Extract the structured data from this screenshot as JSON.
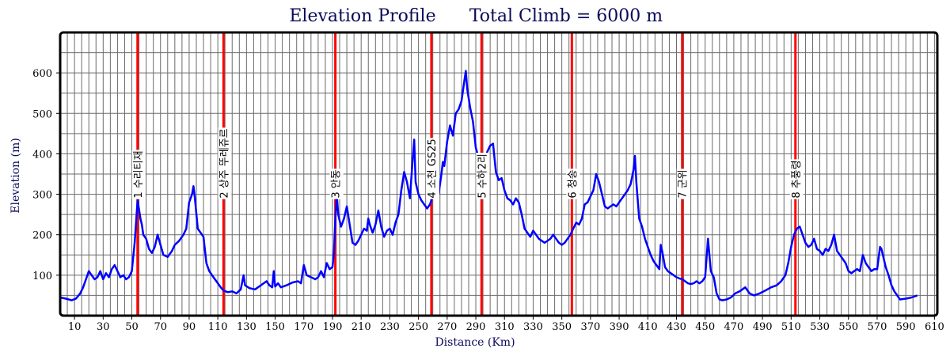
{
  "chart_data": {
    "type": "line",
    "title": "Elevation Profile",
    "subtitle": "Total Climb = 6000 m",
    "xlabel": "Distance (Km)",
    "ylabel": "Elevation (m)",
    "xlim": [
      0,
      612
    ],
    "ylim": [
      0,
      700
    ],
    "x_ticks": [
      10,
      30,
      50,
      70,
      90,
      110,
      130,
      150,
      170,
      190,
      210,
      230,
      250,
      270,
      290,
      310,
      330,
      350,
      370,
      390,
      410,
      430,
      450,
      470,
      490,
      510,
      530,
      550,
      570,
      590,
      610
    ],
    "y_ticks": [
      100,
      200,
      300,
      400,
      500,
      600
    ],
    "grid": true,
    "line_color": "#0000ff",
    "marker_color": "#ff0000",
    "markers": [
      {
        "x": 54,
        "label": "1 수리티재"
      },
      {
        "x": 114,
        "label": "2 상주 뚜레쥬르"
      },
      {
        "x": 192,
        "label": "3 안동"
      },
      {
        "x": 259,
        "label": "4 소천 GS25"
      },
      {
        "x": 294,
        "label": "5 수하2리"
      },
      {
        "x": 357,
        "label": "6 청송"
      },
      {
        "x": 434,
        "label": "7 군위"
      },
      {
        "x": 513,
        "label": "8 추풍령"
      }
    ],
    "series": [
      {
        "points": [
          [
            0,
            45
          ],
          [
            4,
            42
          ],
          [
            8,
            38
          ],
          [
            11,
            42
          ],
          [
            14,
            55
          ],
          [
            16,
            70
          ],
          [
            18,
            90
          ],
          [
            20,
            110
          ],
          [
            22,
            100
          ],
          [
            24,
            90
          ],
          [
            26,
            95
          ],
          [
            28,
            110
          ],
          [
            30,
            90
          ],
          [
            32,
            105
          ],
          [
            34,
            95
          ],
          [
            36,
            115
          ],
          [
            38,
            125
          ],
          [
            40,
            110
          ],
          [
            42,
            95
          ],
          [
            44,
            100
          ],
          [
            46,
            90
          ],
          [
            48,
            95
          ],
          [
            50,
            110
          ],
          [
            52,
            180
          ],
          [
            54,
            285
          ],
          [
            56,
            240
          ],
          [
            57,
            225
          ],
          [
            58,
            200
          ],
          [
            60,
            190
          ],
          [
            62,
            165
          ],
          [
            64,
            155
          ],
          [
            66,
            170
          ],
          [
            68,
            200
          ],
          [
            70,
            175
          ],
          [
            72,
            150
          ],
          [
            75,
            145
          ],
          [
            78,
            160
          ],
          [
            80,
            175
          ],
          [
            83,
            185
          ],
          [
            86,
            200
          ],
          [
            88,
            215
          ],
          [
            90,
            280
          ],
          [
            92,
            300
          ],
          [
            93,
            320
          ],
          [
            94,
            290
          ],
          [
            96,
            215
          ],
          [
            98,
            205
          ],
          [
            100,
            195
          ],
          [
            102,
            130
          ],
          [
            104,
            110
          ],
          [
            106,
            100
          ],
          [
            108,
            90
          ],
          [
            110,
            80
          ],
          [
            112,
            70
          ],
          [
            114,
            62
          ],
          [
            117,
            58
          ],
          [
            120,
            60
          ],
          [
            123,
            55
          ],
          [
            126,
            65
          ],
          [
            128,
            100
          ],
          [
            129,
            75
          ],
          [
            132,
            68
          ],
          [
            136,
            65
          ],
          [
            140,
            75
          ],
          [
            144,
            85
          ],
          [
            146,
            75
          ],
          [
            148,
            70
          ],
          [
            149,
            110
          ],
          [
            150,
            72
          ],
          [
            152,
            80
          ],
          [
            154,
            70
          ],
          [
            158,
            75
          ],
          [
            162,
            82
          ],
          [
            166,
            85
          ],
          [
            168,
            80
          ],
          [
            170,
            125
          ],
          [
            172,
            100
          ],
          [
            175,
            95
          ],
          [
            178,
            90
          ],
          [
            180,
            95
          ],
          [
            182,
            110
          ],
          [
            184,
            95
          ],
          [
            186,
            130
          ],
          [
            188,
            115
          ],
          [
            190,
            120
          ],
          [
            191,
            155
          ],
          [
            192,
            240
          ],
          [
            193,
            300
          ],
          [
            194,
            250
          ],
          [
            196,
            220
          ],
          [
            198,
            240
          ],
          [
            200,
            270
          ],
          [
            202,
            225
          ],
          [
            204,
            180
          ],
          [
            206,
            175
          ],
          [
            208,
            185
          ],
          [
            210,
            200
          ],
          [
            212,
            215
          ],
          [
            214,
            210
          ],
          [
            215,
            240
          ],
          [
            216,
            225
          ],
          [
            218,
            205
          ],
          [
            220,
            225
          ],
          [
            222,
            260
          ],
          [
            224,
            220
          ],
          [
            226,
            195
          ],
          [
            228,
            210
          ],
          [
            230,
            215
          ],
          [
            232,
            200
          ],
          [
            234,
            230
          ],
          [
            236,
            250
          ],
          [
            238,
            310
          ],
          [
            240,
            355
          ],
          [
            242,
            330
          ],
          [
            244,
            290
          ],
          [
            246,
            390
          ],
          [
            247,
            435
          ],
          [
            248,
            330
          ],
          [
            250,
            300
          ],
          [
            252,
            285
          ],
          [
            254,
            275
          ],
          [
            256,
            265
          ],
          [
            258,
            275
          ],
          [
            260,
            295
          ],
          [
            262,
            305
          ],
          [
            264,
            300
          ],
          [
            266,
            350
          ],
          [
            267,
            380
          ],
          [
            268,
            370
          ],
          [
            270,
            430
          ],
          [
            272,
            470
          ],
          [
            274,
            445
          ],
          [
            276,
            500
          ],
          [
            278,
            510
          ],
          [
            280,
            530
          ],
          [
            282,
            580
          ],
          [
            283,
            605
          ],
          [
            284,
            560
          ],
          [
            286,
            515
          ],
          [
            288,
            480
          ],
          [
            290,
            415
          ],
          [
            292,
            390
          ],
          [
            294,
            370
          ],
          [
            296,
            380
          ],
          [
            298,
            405
          ],
          [
            300,
            420
          ],
          [
            302,
            425
          ],
          [
            304,
            355
          ],
          [
            306,
            335
          ],
          [
            308,
            340
          ],
          [
            310,
            310
          ],
          [
            312,
            290
          ],
          [
            314,
            285
          ],
          [
            316,
            275
          ],
          [
            318,
            290
          ],
          [
            320,
            280
          ],
          [
            322,
            250
          ],
          [
            324,
            215
          ],
          [
            326,
            205
          ],
          [
            328,
            195
          ],
          [
            330,
            210
          ],
          [
            332,
            200
          ],
          [
            334,
            190
          ],
          [
            336,
            185
          ],
          [
            338,
            180
          ],
          [
            340,
            185
          ],
          [
            342,
            190
          ],
          [
            344,
            200
          ],
          [
            346,
            190
          ],
          [
            348,
            180
          ],
          [
            350,
            175
          ],
          [
            352,
            180
          ],
          [
            354,
            190
          ],
          [
            356,
            200
          ],
          [
            358,
            215
          ],
          [
            360,
            230
          ],
          [
            362,
            225
          ],
          [
            364,
            240
          ],
          [
            366,
            275
          ],
          [
            368,
            280
          ],
          [
            370,
            295
          ],
          [
            372,
            310
          ],
          [
            374,
            350
          ],
          [
            376,
            330
          ],
          [
            378,
            300
          ],
          [
            380,
            270
          ],
          [
            382,
            265
          ],
          [
            384,
            270
          ],
          [
            386,
            275
          ],
          [
            388,
            270
          ],
          [
            390,
            280
          ],
          [
            392,
            290
          ],
          [
            394,
            300
          ],
          [
            396,
            310
          ],
          [
            398,
            325
          ],
          [
            400,
            360
          ],
          [
            401,
            395
          ],
          [
            402,
            330
          ],
          [
            404,
            240
          ],
          [
            406,
            220
          ],
          [
            408,
            190
          ],
          [
            410,
            170
          ],
          [
            412,
            150
          ],
          [
            414,
            135
          ],
          [
            416,
            125
          ],
          [
            418,
            115
          ],
          [
            419,
            175
          ],
          [
            420,
            160
          ],
          [
            422,
            120
          ],
          [
            424,
            110
          ],
          [
            426,
            105
          ],
          [
            428,
            100
          ],
          [
            430,
            95
          ],
          [
            432,
            92
          ],
          [
            434,
            90
          ],
          [
            436,
            85
          ],
          [
            438,
            80
          ],
          [
            440,
            78
          ],
          [
            442,
            80
          ],
          [
            444,
            85
          ],
          [
            446,
            80
          ],
          [
            448,
            85
          ],
          [
            450,
            95
          ],
          [
            452,
            190
          ],
          [
            453,
            150
          ],
          [
            454,
            110
          ],
          [
            456,
            95
          ],
          [
            458,
            55
          ],
          [
            460,
            40
          ],
          [
            462,
            38
          ],
          [
            465,
            40
          ],
          [
            468,
            45
          ],
          [
            471,
            55
          ],
          [
            474,
            60
          ],
          [
            478,
            70
          ],
          [
            481,
            55
          ],
          [
            484,
            50
          ],
          [
            488,
            55
          ],
          [
            492,
            62
          ],
          [
            496,
            70
          ],
          [
            500,
            75
          ],
          [
            503,
            85
          ],
          [
            506,
            100
          ],
          [
            508,
            130
          ],
          [
            510,
            170
          ],
          [
            512,
            200
          ],
          [
            514,
            215
          ],
          [
            516,
            220
          ],
          [
            518,
            200
          ],
          [
            520,
            180
          ],
          [
            522,
            170
          ],
          [
            524,
            175
          ],
          [
            526,
            190
          ],
          [
            528,
            165
          ],
          [
            530,
            160
          ],
          [
            532,
            150
          ],
          [
            534,
            165
          ],
          [
            536,
            160
          ],
          [
            538,
            175
          ],
          [
            540,
            200
          ],
          [
            542,
            160
          ],
          [
            544,
            150
          ],
          [
            546,
            140
          ],
          [
            548,
            130
          ],
          [
            550,
            110
          ],
          [
            552,
            105
          ],
          [
            554,
            110
          ],
          [
            556,
            115
          ],
          [
            558,
            110
          ],
          [
            560,
            150
          ],
          [
            562,
            130
          ],
          [
            564,
            120
          ],
          [
            566,
            110
          ],
          [
            568,
            115
          ],
          [
            570,
            115
          ],
          [
            572,
            170
          ],
          [
            573,
            165
          ],
          [
            574,
            150
          ],
          [
            576,
            120
          ],
          [
            578,
            100
          ],
          [
            580,
            75
          ],
          [
            582,
            60
          ],
          [
            584,
            50
          ],
          [
            586,
            40
          ],
          [
            590,
            42
          ],
          [
            594,
            45
          ],
          [
            598,
            50
          ]
        ]
      }
    ]
  }
}
